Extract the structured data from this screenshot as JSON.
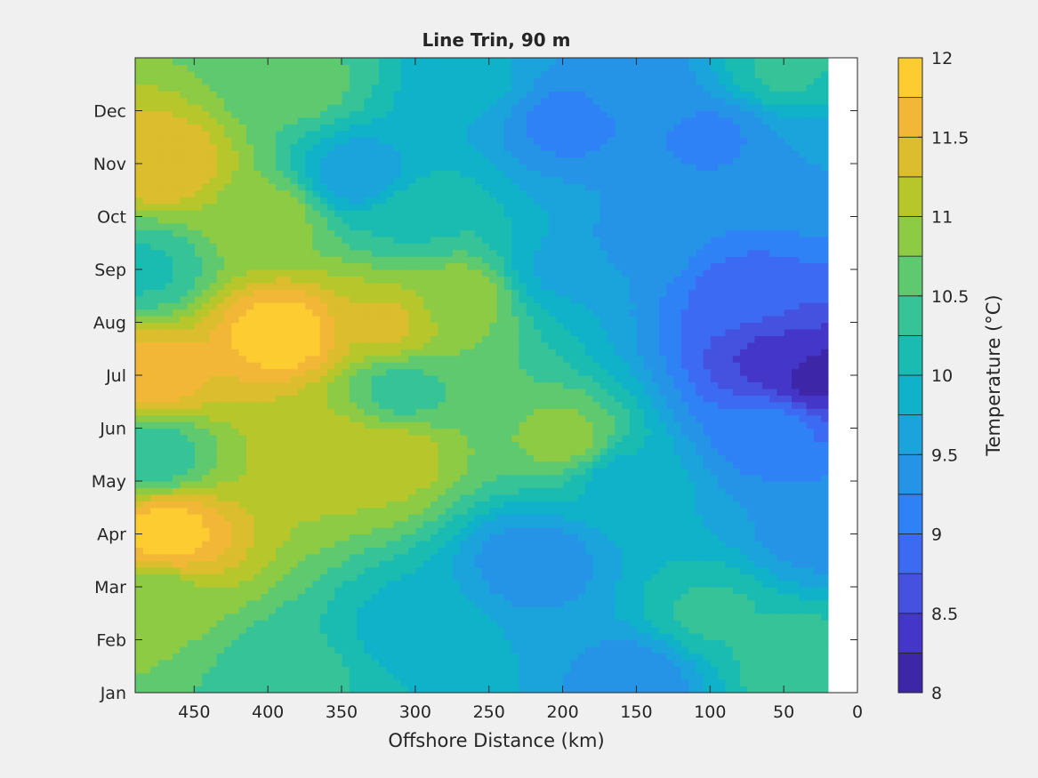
{
  "chart_data": {
    "type": "heatmap",
    "title": "Line Trin, 90 m",
    "xlabel": "Offshore Distance (km)",
    "ylabel": "",
    "xlim": [
      0,
      490
    ],
    "x_reversed": true,
    "x_ticks": [
      450,
      400,
      350,
      300,
      250,
      200,
      150,
      100,
      50,
      0
    ],
    "x_tick_labels": [
      "450",
      "400",
      "350",
      "300",
      "250",
      "200",
      "150",
      "100",
      "50",
      "0"
    ],
    "y_tick_labels": [
      "Jan",
      "Feb",
      "Mar",
      "Apr",
      "May",
      "Jun",
      "Jul",
      "Aug",
      "Sep",
      "Oct",
      "Nov",
      "Dec"
    ],
    "data_x_extent": [
      20,
      490
    ],
    "grid": false,
    "colorbar": {
      "label": "Temperature (°C)",
      "min": 8,
      "max": 12,
      "ticks": [
        8,
        8.5,
        9,
        9.5,
        10,
        10.5,
        11,
        11.5,
        12
      ],
      "tick_labels": [
        "8",
        "8.5",
        "9",
        "9.5",
        "10",
        "10.5",
        "11",
        "11.5",
        "12"
      ],
      "levels": [
        8,
        8.25,
        8.5,
        8.75,
        9,
        9.25,
        9.5,
        9.75,
        10,
        10.25,
        10.5,
        10.75,
        11,
        11.25,
        11.5,
        11.75,
        12
      ],
      "colors": [
        "#3e26a8",
        "#4336c8",
        "#4552e0",
        "#3c6af2",
        "#2f82f6",
        "#2694e6",
        "#1ba3dc",
        "#0fb2c8",
        "#1abcb2",
        "#36c398",
        "#5ec96f",
        "#8ccb43",
        "#b7c72b",
        "#dcbd2d",
        "#f3b737",
        "#fccc30",
        "#f4e61b"
      ]
    },
    "field_points": [
      {
        "x": 470,
        "y": 3.0,
        "value": 11.9
      },
      {
        "x": 480,
        "y": 1.8,
        "value": 10.8
      },
      {
        "x": 380,
        "y": 0.4,
        "value": 10.3
      },
      {
        "x": 300,
        "y": 1.2,
        "value": 9.85
      },
      {
        "x": 220,
        "y": 2.5,
        "value": 9.3
      },
      {
        "x": 150,
        "y": 0.3,
        "value": 9.35
      },
      {
        "x": 100,
        "y": 1.5,
        "value": 10.3
      },
      {
        "x": 40,
        "y": 0.6,
        "value": 10.45
      },
      {
        "x": 30,
        "y": 3.0,
        "value": 9.4
      },
      {
        "x": 480,
        "y": 4.5,
        "value": 10.3
      },
      {
        "x": 360,
        "y": 4.5,
        "value": 11.2
      },
      {
        "x": 320,
        "y": 4.5,
        "value": 11.2
      },
      {
        "x": 200,
        "y": 4.8,
        "value": 10.85
      },
      {
        "x": 310,
        "y": 5.7,
        "value": 10.4
      },
      {
        "x": 160,
        "y": 4.0,
        "value": 9.9
      },
      {
        "x": 60,
        "y": 5.0,
        "value": 9.1
      },
      {
        "x": 480,
        "y": 6.0,
        "value": 11.7
      },
      {
        "x": 390,
        "y": 6.8,
        "value": 12.0
      },
      {
        "x": 320,
        "y": 7.0,
        "value": 11.3
      },
      {
        "x": 270,
        "y": 7.5,
        "value": 10.9
      },
      {
        "x": 485,
        "y": 8.0,
        "value": 10.2
      },
      {
        "x": 30,
        "y": 6.0,
        "value": 8.15
      },
      {
        "x": 60,
        "y": 6.3,
        "value": 8.45
      },
      {
        "x": 80,
        "y": 7.5,
        "value": 8.85
      },
      {
        "x": 200,
        "y": 8.0,
        "value": 9.7
      },
      {
        "x": 150,
        "y": 8.5,
        "value": 9.4
      },
      {
        "x": 300,
        "y": 9.0,
        "value": 10.2
      },
      {
        "x": 400,
        "y": 9.0,
        "value": 10.9
      },
      {
        "x": 470,
        "y": 10.0,
        "value": 11.5
      },
      {
        "x": 340,
        "y": 9.8,
        "value": 9.55
      },
      {
        "x": 200,
        "y": 10.8,
        "value": 9.15
      },
      {
        "x": 100,
        "y": 10.5,
        "value": 9.2
      },
      {
        "x": 380,
        "y": 11.5,
        "value": 10.6
      },
      {
        "x": 260,
        "y": 11.5,
        "value": 9.8
      },
      {
        "x": 150,
        "y": 11.8,
        "value": 9.4
      },
      {
        "x": 50,
        "y": 11.8,
        "value": 10.3
      },
      {
        "x": 30,
        "y": 10.0,
        "value": 9.5
      }
    ]
  }
}
